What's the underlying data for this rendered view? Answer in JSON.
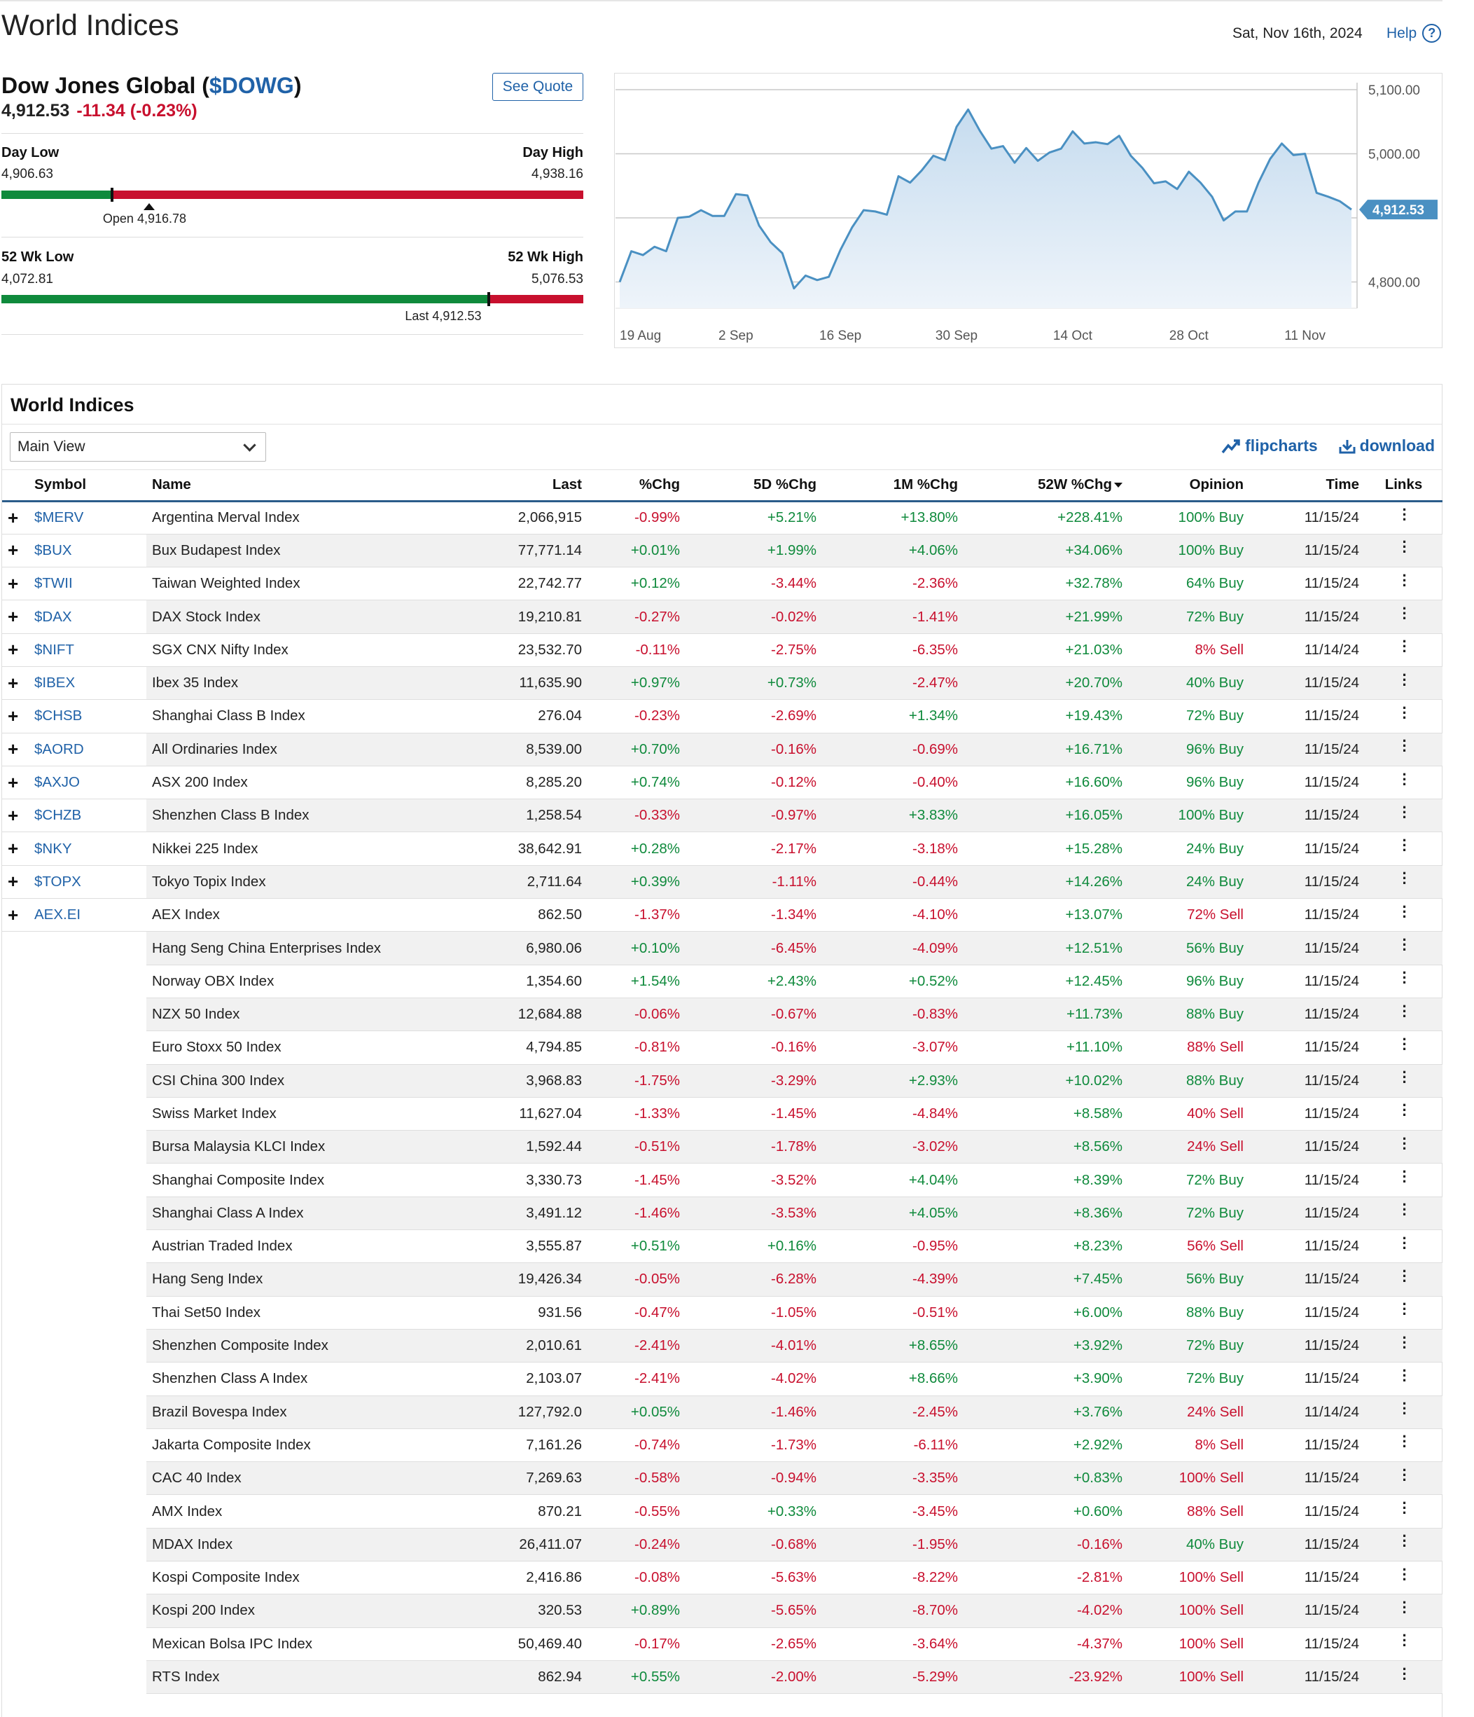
{
  "header": {
    "title": "World Indices",
    "date": "Sat, Nov 16th, 2024",
    "help_label": "Help"
  },
  "quote": {
    "name": "Dow Jones Global (",
    "symbol": "$DOWG",
    "name_close": ")",
    "last": "4,912.53",
    "change": "-11.34 (-0.23%)",
    "see_quote": "See Quote",
    "day_low_label": "Day Low",
    "day_low": "4,906.63",
    "day_high_label": "Day High",
    "day_high": "4,938.16",
    "open_label": "Open 4,916.78",
    "wk52_low_label": "52 Wk Low",
    "wk52_low": "4,072.81",
    "wk52_high_label": "52 Wk High",
    "wk52_high": "5,076.53",
    "last_label": "Last 4,912.53",
    "day_range_fraction": 0.54,
    "open_fraction": 0.19,
    "wk52_fraction": 0.838
  },
  "chart_data": {
    "type": "area",
    "x": [
      "19 Aug",
      "20 Aug",
      "21 Aug",
      "22 Aug",
      "23 Aug",
      "26 Aug",
      "27 Aug",
      "28 Aug",
      "29 Aug",
      "30 Aug",
      "3 Sep",
      "4 Sep",
      "5 Sep",
      "6 Sep",
      "9 Sep",
      "10 Sep",
      "11 Sep",
      "12 Sep",
      "13 Sep",
      "16 Sep",
      "17 Sep",
      "18 Sep",
      "19 Sep",
      "20 Sep",
      "23 Sep",
      "24 Sep",
      "25 Sep",
      "26 Sep",
      "27 Sep",
      "30 Sep",
      "1 Oct",
      "2 Oct",
      "3 Oct",
      "4 Oct",
      "7 Oct",
      "8 Oct",
      "9 Oct",
      "10 Oct",
      "11 Oct",
      "14 Oct",
      "15 Oct",
      "16 Oct",
      "17 Oct",
      "18 Oct",
      "21 Oct",
      "22 Oct",
      "23 Oct",
      "24 Oct",
      "25 Oct",
      "28 Oct",
      "29 Oct",
      "30 Oct",
      "31 Oct",
      "1 Nov",
      "4 Nov",
      "5 Nov",
      "6 Nov",
      "7 Nov",
      "8 Nov",
      "11 Nov",
      "12 Nov",
      "13 Nov",
      "14 Nov",
      "15 Nov"
    ],
    "y": [
      4800,
      4848,
      4842,
      4855,
      4848,
      4900,
      4902,
      4912,
      4903,
      4903,
      4937,
      4935,
      4888,
      4862,
      4845,
      4790,
      4810,
      4803,
      4808,
      4850,
      4885,
      4912,
      4910,
      4905,
      4965,
      4955,
      4974,
      4997,
      4990,
      5042,
      5069,
      5036,
      5008,
      5012,
      4986,
      5009,
      4989,
      5002,
      5008,
      5035,
      5016,
      5018,
      5015,
      5028,
      4997,
      4978,
      4954,
      4957,
      4945,
      4972,
      4955,
      4933,
      4896,
      4910,
      4910,
      4955,
      4992,
      5016,
      4998,
      5000,
      4939,
      4933,
      4926,
      4913
    ],
    "ylim": [
      4770,
      5100
    ],
    "yticks": [
      "5,100.00",
      "5,000.00",
      "4,900.00",
      "4,800.00"
    ],
    "xticks": [
      "19 Aug",
      "2 Sep",
      "16 Sep",
      "30 Sep",
      "14 Oct",
      "28 Oct",
      "11 Nov"
    ],
    "last_label": "4,912.53",
    "color": "#4a90c2"
  },
  "table": {
    "title": "World Indices",
    "view": "Main View",
    "flipcharts": "flipcharts",
    "download": "download",
    "columns": [
      "Symbol",
      "Name",
      "Last",
      "%Chg",
      "5D %Chg",
      "1M %Chg",
      "52W %Chg",
      "Opinion",
      "Time",
      "Links"
    ],
    "rows": [
      {
        "symbol": "$MERV",
        "name": "Argentina Merval Index",
        "last": "2,066,915",
        "chg": "-0.99%",
        "d5": "+5.21%",
        "m1": "+13.80%",
        "w52": "+228.41%",
        "opinion": "100% Buy",
        "time": "11/15/24"
      },
      {
        "symbol": "$BUX",
        "name": "Bux Budapest Index",
        "last": "77,771.14",
        "chg": "+0.01%",
        "d5": "+1.99%",
        "m1": "+4.06%",
        "w52": "+34.06%",
        "opinion": "100% Buy",
        "time": "11/15/24"
      },
      {
        "symbol": "$TWII",
        "name": "Taiwan Weighted Index",
        "last": "22,742.77",
        "chg": "+0.12%",
        "d5": "-3.44%",
        "m1": "-2.36%",
        "w52": "+32.78%",
        "opinion": "64% Buy",
        "time": "11/15/24"
      },
      {
        "symbol": "$DAX",
        "name": "DAX Stock Index",
        "last": "19,210.81",
        "chg": "-0.27%",
        "d5": "-0.02%",
        "m1": "-1.41%",
        "w52": "+21.99%",
        "opinion": "72% Buy",
        "time": "11/15/24"
      },
      {
        "symbol": "$NIFT",
        "name": "SGX CNX Nifty Index",
        "last": "23,532.70",
        "chg": "-0.11%",
        "d5": "-2.75%",
        "m1": "-6.35%",
        "w52": "+21.03%",
        "opinion": "8% Sell",
        "time": "11/14/24"
      },
      {
        "symbol": "$IBEX",
        "name": "Ibex 35 Index",
        "last": "11,635.90",
        "chg": "+0.97%",
        "d5": "+0.73%",
        "m1": "-2.47%",
        "w52": "+20.70%",
        "opinion": "40% Buy",
        "time": "11/15/24"
      },
      {
        "symbol": "$CHSB",
        "name": "Shanghai Class B Index",
        "last": "276.04",
        "chg": "-0.23%",
        "d5": "-2.69%",
        "m1": "+1.34%",
        "w52": "+19.43%",
        "opinion": "72% Buy",
        "time": "11/15/24"
      },
      {
        "symbol": "$AORD",
        "name": "All Ordinaries Index",
        "last": "8,539.00",
        "chg": "+0.70%",
        "d5": "-0.16%",
        "m1": "-0.69%",
        "w52": "+16.71%",
        "opinion": "96% Buy",
        "time": "11/15/24"
      },
      {
        "symbol": "$AXJO",
        "name": "ASX 200 Index",
        "last": "8,285.20",
        "chg": "+0.74%",
        "d5": "-0.12%",
        "m1": "-0.40%",
        "w52": "+16.60%",
        "opinion": "96% Buy",
        "time": "11/15/24"
      },
      {
        "symbol": "$CHZB",
        "name": "Shenzhen Class B Index",
        "last": "1,258.54",
        "chg": "-0.33%",
        "d5": "-0.97%",
        "m1": "+3.83%",
        "w52": "+16.05%",
        "opinion": "100% Buy",
        "time": "11/15/24"
      },
      {
        "symbol": "$NKY",
        "name": "Nikkei 225 Index",
        "last": "38,642.91",
        "chg": "+0.28%",
        "d5": "-2.17%",
        "m1": "-3.18%",
        "w52": "+15.28%",
        "opinion": "24% Buy",
        "time": "11/15/24"
      },
      {
        "symbol": "$TOPX",
        "name": "Tokyo Topix Index",
        "last": "2,711.64",
        "chg": "+0.39%",
        "d5": "-1.11%",
        "m1": "-0.44%",
        "w52": "+14.26%",
        "opinion": "24% Buy",
        "time": "11/15/24"
      },
      {
        "symbol": "AEX.EI",
        "name": "AEX Index",
        "last": "862.50",
        "chg": "-1.37%",
        "d5": "-1.34%",
        "m1": "-4.10%",
        "w52": "+13.07%",
        "opinion": "72% Sell",
        "time": "11/15/24"
      },
      {
        "symbol": "",
        "name": "Hang Seng China Enterprises Index",
        "last": "6,980.06",
        "chg": "+0.10%",
        "d5": "-6.45%",
        "m1": "-4.09%",
        "w52": "+12.51%",
        "opinion": "56% Buy",
        "time": "11/15/24"
      },
      {
        "symbol": "",
        "name": "Norway OBX Index",
        "last": "1,354.60",
        "chg": "+1.54%",
        "d5": "+2.43%",
        "m1": "+0.52%",
        "w52": "+12.45%",
        "opinion": "96% Buy",
        "time": "11/15/24"
      },
      {
        "symbol": "",
        "name": "NZX 50 Index",
        "last": "12,684.88",
        "chg": "-0.06%",
        "d5": "-0.67%",
        "m1": "-0.83%",
        "w52": "+11.73%",
        "opinion": "88% Buy",
        "time": "11/15/24"
      },
      {
        "symbol": "",
        "name": "Euro Stoxx 50 Index",
        "last": "4,794.85",
        "chg": "-0.81%",
        "d5": "-0.16%",
        "m1": "-3.07%",
        "w52": "+11.10%",
        "opinion": "88% Sell",
        "time": "11/15/24"
      },
      {
        "symbol": "",
        "name": "CSI China 300 Index",
        "last": "3,968.83",
        "chg": "-1.75%",
        "d5": "-3.29%",
        "m1": "+2.93%",
        "w52": "+10.02%",
        "opinion": "88% Buy",
        "time": "11/15/24"
      },
      {
        "symbol": "",
        "name": "Swiss Market Index",
        "last": "11,627.04",
        "chg": "-1.33%",
        "d5": "-1.45%",
        "m1": "-4.84%",
        "w52": "+8.58%",
        "opinion": "40% Sell",
        "time": "11/15/24"
      },
      {
        "symbol": "",
        "name": "Bursa Malaysia KLCI Index",
        "last": "1,592.44",
        "chg": "-0.51%",
        "d5": "-1.78%",
        "m1": "-3.02%",
        "w52": "+8.56%",
        "opinion": "24% Sell",
        "time": "11/15/24"
      },
      {
        "symbol": "",
        "name": "Shanghai Composite Index",
        "last": "3,330.73",
        "chg": "-1.45%",
        "d5": "-3.52%",
        "m1": "+4.04%",
        "w52": "+8.39%",
        "opinion": "72% Buy",
        "time": "11/15/24"
      },
      {
        "symbol": "",
        "name": "Shanghai Class A Index",
        "last": "3,491.12",
        "chg": "-1.46%",
        "d5": "-3.53%",
        "m1": "+4.05%",
        "w52": "+8.36%",
        "opinion": "72% Buy",
        "time": "11/15/24"
      },
      {
        "symbol": "",
        "name": "Austrian Traded Index",
        "last": "3,555.87",
        "chg": "+0.51%",
        "d5": "+0.16%",
        "m1": "-0.95%",
        "w52": "+8.23%",
        "opinion": "56% Sell",
        "time": "11/15/24"
      },
      {
        "symbol": "",
        "name": "Hang Seng Index",
        "last": "19,426.34",
        "chg": "-0.05%",
        "d5": "-6.28%",
        "m1": "-4.39%",
        "w52": "+7.45%",
        "opinion": "56% Buy",
        "time": "11/15/24"
      },
      {
        "symbol": "",
        "name": "Thai Set50 Index",
        "last": "931.56",
        "chg": "-0.47%",
        "d5": "-1.05%",
        "m1": "-0.51%",
        "w52": "+6.00%",
        "opinion": "88% Buy",
        "time": "11/15/24"
      },
      {
        "symbol": "",
        "name": "Shenzhen Composite Index",
        "last": "2,010.61",
        "chg": "-2.41%",
        "d5": "-4.01%",
        "m1": "+8.65%",
        "w52": "+3.92%",
        "opinion": "72% Buy",
        "time": "11/15/24"
      },
      {
        "symbol": "",
        "name": "Shenzhen Class A Index",
        "last": "2,103.07",
        "chg": "-2.41%",
        "d5": "-4.02%",
        "m1": "+8.66%",
        "w52": "+3.90%",
        "opinion": "72% Buy",
        "time": "11/15/24"
      },
      {
        "symbol": "",
        "name": "Brazil Bovespa Index",
        "last": "127,792.0",
        "chg": "+0.05%",
        "d5": "-1.46%",
        "m1": "-2.45%",
        "w52": "+3.76%",
        "opinion": "24% Sell",
        "time": "11/14/24"
      },
      {
        "symbol": "",
        "name": "Jakarta Composite Index",
        "last": "7,161.26",
        "chg": "-0.74%",
        "d5": "-1.73%",
        "m1": "-6.11%",
        "w52": "+2.92%",
        "opinion": "8% Sell",
        "time": "11/15/24"
      },
      {
        "symbol": "",
        "name": "CAC 40 Index",
        "last": "7,269.63",
        "chg": "-0.58%",
        "d5": "-0.94%",
        "m1": "-3.35%",
        "w52": "+0.83%",
        "opinion": "100% Sell",
        "time": "11/15/24"
      },
      {
        "symbol": "",
        "name": "AMX Index",
        "last": "870.21",
        "chg": "-0.55%",
        "d5": "+0.33%",
        "m1": "-3.45%",
        "w52": "+0.60%",
        "opinion": "88% Sell",
        "time": "11/15/24"
      },
      {
        "symbol": "",
        "name": "MDAX Index",
        "last": "26,411.07",
        "chg": "-0.24%",
        "d5": "-0.68%",
        "m1": "-1.95%",
        "w52": "-0.16%",
        "opinion": "40% Buy",
        "time": "11/15/24"
      },
      {
        "symbol": "",
        "name": "Kospi Composite Index",
        "last": "2,416.86",
        "chg": "-0.08%",
        "d5": "-5.63%",
        "m1": "-8.22%",
        "w52": "-2.81%",
        "opinion": "100% Sell",
        "time": "11/15/24"
      },
      {
        "symbol": "",
        "name": "Kospi 200 Index",
        "last": "320.53",
        "chg": "+0.89%",
        "d5": "-5.65%",
        "m1": "-8.70%",
        "w52": "-4.02%",
        "opinion": "100% Sell",
        "time": "11/15/24"
      },
      {
        "symbol": "",
        "name": "Mexican Bolsa IPC Index",
        "last": "50,469.40",
        "chg": "-0.17%",
        "d5": "-2.65%",
        "m1": "-3.64%",
        "w52": "-4.37%",
        "opinion": "100% Sell",
        "time": "11/15/24"
      },
      {
        "symbol": "",
        "name": "RTS Index",
        "last": "862.94",
        "chg": "+0.55%",
        "d5": "-2.00%",
        "m1": "-5.29%",
        "w52": "-23.92%",
        "opinion": "100% Sell",
        "time": "11/15/24"
      }
    ]
  },
  "colors": {
    "up": "#0f8a3c",
    "down": "#c8102e",
    "link": "#2062a8"
  }
}
